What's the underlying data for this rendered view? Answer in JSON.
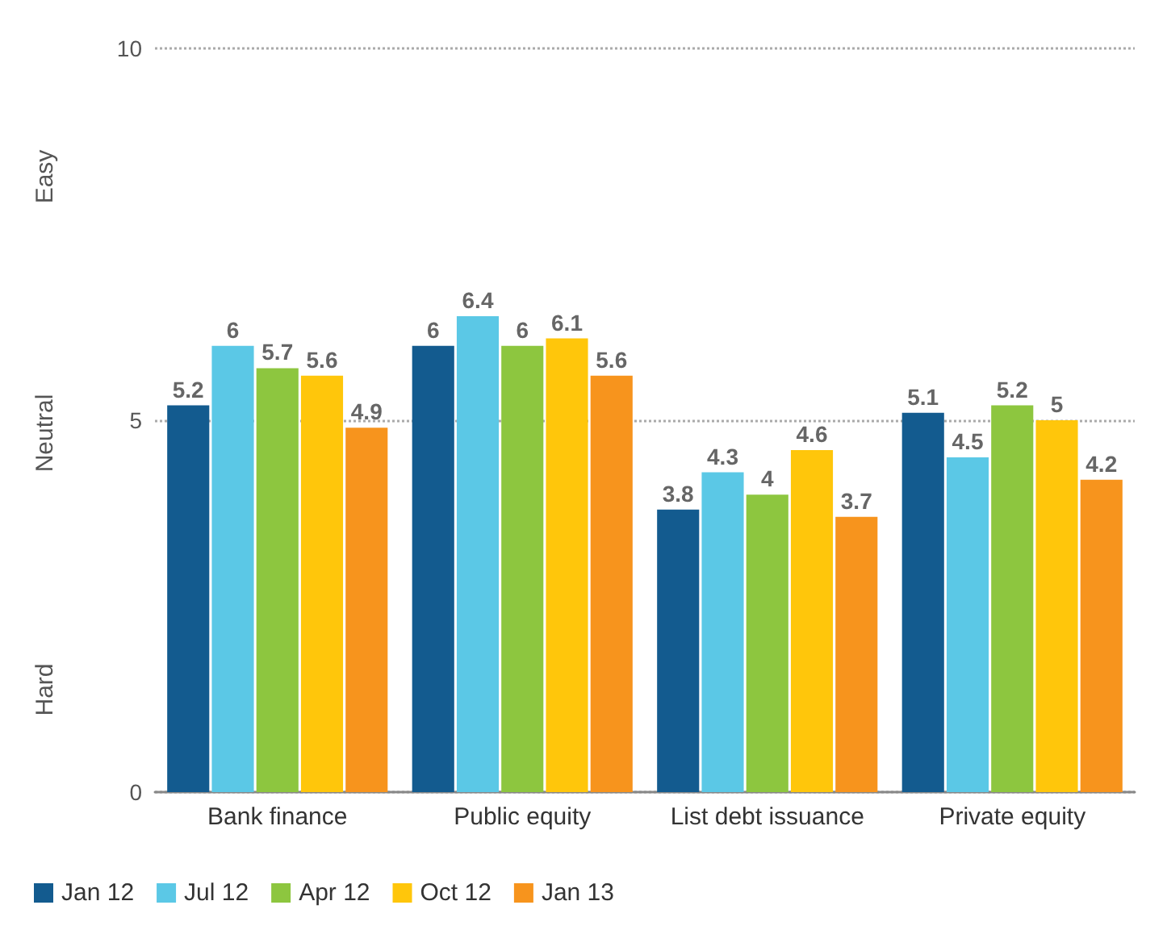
{
  "chart_data": {
    "type": "bar",
    "categories": [
      "Bank finance",
      "Public equity",
      "List debt issuance",
      "Private equity"
    ],
    "series": [
      {
        "name": "Jan 12",
        "color": "#135b8f",
        "values": [
          5.2,
          6,
          3.8,
          5.1
        ]
      },
      {
        "name": "Jul 12",
        "color": "#5bc8e6",
        "values": [
          6,
          6.4,
          4.3,
          4.5
        ]
      },
      {
        "name": "Apr 12",
        "color": "#8dc63f",
        "values": [
          5.7,
          6,
          4,
          5.2
        ]
      },
      {
        "name": "Oct 12",
        "color": "#ffc60b",
        "values": [
          5.6,
          6.1,
          4.6,
          5
        ]
      },
      {
        "name": "Jan 13",
        "color": "#f7941d",
        "values": [
          4.9,
          5.6,
          3.7,
          4.2
        ]
      }
    ],
    "ylim": [
      0,
      10
    ],
    "yticks": [
      0,
      5,
      10
    ],
    "grid": "y",
    "legend": "bottom left",
    "data_labels": true,
    "annotations": [
      "Easy",
      "Neutral",
      "Hard"
    ]
  }
}
